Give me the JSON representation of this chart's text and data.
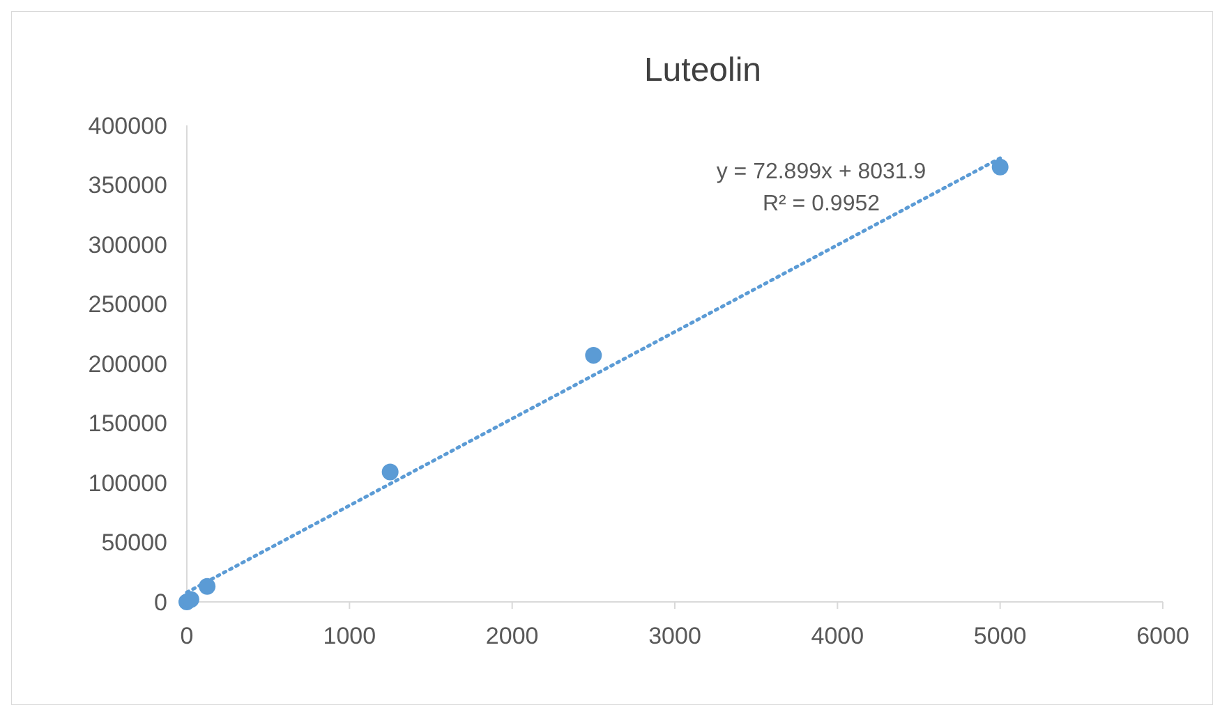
{
  "chart_data": {
    "type": "scatter",
    "title": "Luteolin",
    "series": [
      {
        "color": "#5b9bd5",
        "marker": "circle",
        "x": [
          0,
          25,
          125,
          1250,
          2500,
          5000
        ],
        "values": [
          0,
          2000,
          13000,
          109000,
          207000,
          365000
        ]
      },
      {
        "type": "line",
        "color": "#5b9bd5",
        "line_style": "dotted",
        "marker": "none",
        "x": [
          0,
          5000
        ],
        "values": [
          8000,
          372500
        ]
      }
    ],
    "xlim": [
      0,
      6000
    ],
    "xticks": [
      0,
      1000,
      2000,
      3000,
      4000,
      5000,
      6000
    ],
    "ylim": [
      0,
      400000
    ],
    "yticks": [
      0,
      50000,
      100000,
      150000,
      200000,
      250000,
      300000,
      350000,
      400000
    ],
    "annotations": [
      "y = 72.899x + 8031.9",
      "R² = 0.9952"
    ],
    "grid": false
  }
}
